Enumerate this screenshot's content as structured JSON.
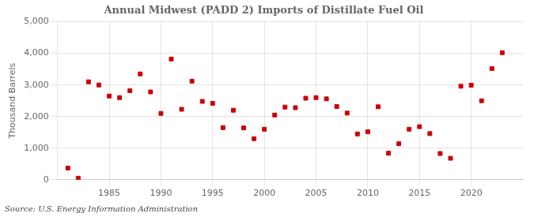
{
  "chart_data": {
    "type": "scatter",
    "title": "Annual Midwest (PADD 2) Imports of Distillate Fuel Oil",
    "ylabel": "Thousand Barrels",
    "annotation": "Source: U.S. Energy Information Administration",
    "x": [
      1981,
      1982,
      1983,
      1984,
      1985,
      1986,
      1987,
      1988,
      1989,
      1990,
      1991,
      1992,
      1993,
      1994,
      1995,
      1996,
      1997,
      1998,
      1999,
      2000,
      2001,
      2002,
      2003,
      2004,
      2005,
      2006,
      2007,
      2008,
      2009,
      2010,
      2011,
      2012,
      2013,
      2014,
      2015,
      2016,
      2017,
      2018,
      2019,
      2020,
      2021,
      2022,
      2023
    ],
    "values": [
      370,
      50,
      3100,
      3000,
      2650,
      2600,
      2820,
      3350,
      2780,
      2100,
      3820,
      2230,
      3120,
      2480,
      2420,
      1650,
      2200,
      1640,
      1300,
      1600,
      2050,
      2300,
      2280,
      2580,
      2600,
      2560,
      2320,
      2110,
      1450,
      1520,
      2310,
      840,
      1140,
      1600,
      1680,
      1460,
      830,
      680,
      2960,
      2990,
      2500,
      3520,
      4020
    ],
    "color": "#cc0000",
    "marker": "square",
    "xlim": [
      1980,
      2025
    ],
    "xticks": [
      1985,
      1990,
      1995,
      2000,
      2005,
      2010,
      2015,
      2020
    ],
    "ylim": [
      0,
      5000
    ],
    "yticks": [
      0,
      {
        "value": 1000,
        "label": "1,000"
      },
      {
        "value": 2000,
        "label": "2,000"
      },
      {
        "value": 3000,
        "label": "3,000"
      },
      {
        "value": 4000,
        "label": "4,000"
      },
      {
        "value": 5000,
        "label": "5,000"
      }
    ],
    "grid": true
  }
}
